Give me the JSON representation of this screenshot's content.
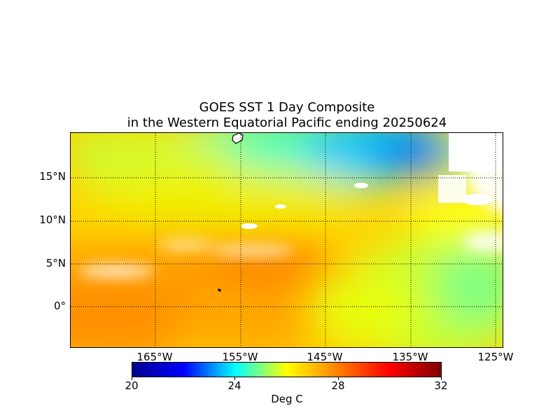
{
  "title": {
    "line1": "GOES SST 1 Day Composite",
    "line2": "in the Western Equatorial Pacific ending 20250624"
  },
  "map": {
    "lat_labels": [
      "15°N",
      "10°N",
      "5°N",
      "0°"
    ],
    "lon_labels": [
      "165°W",
      "155°W",
      "145°W",
      "135°W",
      "125°W"
    ],
    "grid": "dotted",
    "land_color": "#ffffff",
    "missing_data_color": "#ffffff"
  },
  "colorbar": {
    "ticks": [
      "20",
      "24",
      "28",
      "32"
    ],
    "unit": "Deg C",
    "min": 20,
    "max": 32,
    "colors": [
      "#00008f",
      "#0000ff",
      "#00ffff",
      "#ffff00",
      "#ff7f00",
      "#ff0000",
      "#800000"
    ]
  }
}
